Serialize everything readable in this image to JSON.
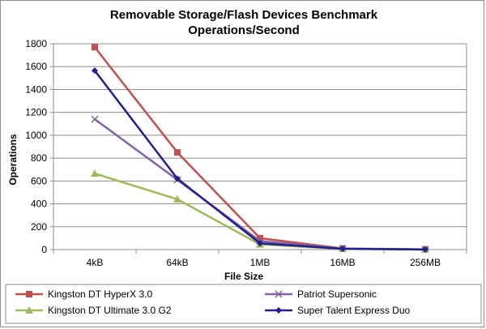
{
  "chart_data": {
    "type": "line",
    "title": "Removable Storage/Flash Devices Benchmark",
    "subtitle": "Operations/Second",
    "xlabel": "File Size",
    "ylabel": "Operations",
    "categories": [
      "4kB",
      "64kB",
      "1MB",
      "16MB",
      "256MB"
    ],
    "ylim": [
      0,
      1800
    ],
    "yticks": [
      0,
      200,
      400,
      600,
      800,
      1000,
      1200,
      1400,
      1600,
      1800
    ],
    "grid": "horizontal",
    "legend_position": "bottom",
    "series": [
      {
        "name": "Kingston DT HyperX 3.0",
        "color": "#c0504d",
        "marker": "square",
        "values": [
          1770,
          850,
          100,
          10,
          2
        ]
      },
      {
        "name": "Patriot Supersonic",
        "color": "#8064a2",
        "marker": "x",
        "values": [
          1140,
          610,
          75,
          8,
          1
        ]
      },
      {
        "name": "Kingston DT Ultimate 3.0 G2",
        "color": "#9bbb59",
        "marker": "triangle",
        "values": [
          665,
          440,
          45,
          6,
          1
        ]
      },
      {
        "name": "Super Talent Express Duo",
        "color": "#1f1f8f",
        "marker": "diamond",
        "values": [
          1565,
          620,
          55,
          7,
          1
        ]
      }
    ]
  }
}
